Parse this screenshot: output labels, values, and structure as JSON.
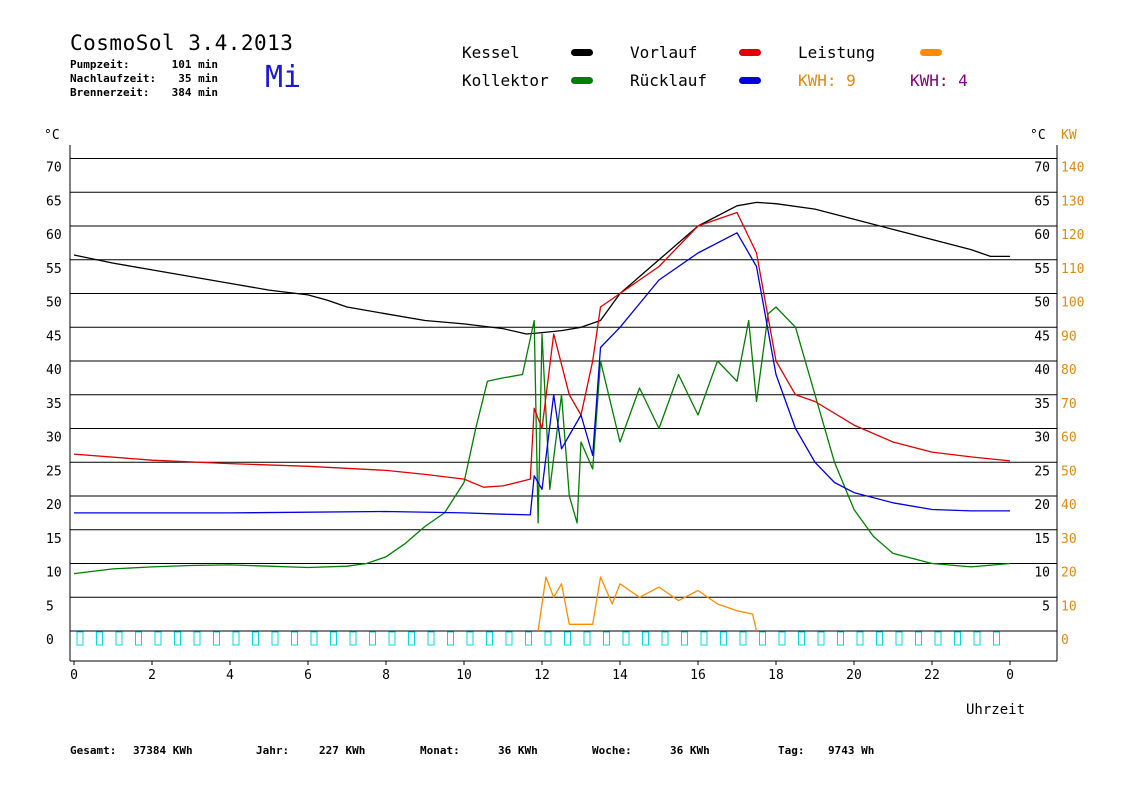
{
  "header": {
    "title": "CosmoSol 3.4.2013",
    "day": "Mi",
    "stats": [
      {
        "label": "Pumpzeit:",
        "value": "101 min"
      },
      {
        "label": "Nachlaufzeit:",
        "value": "35 min"
      },
      {
        "label": "Brennerzeit:",
        "value": "384 min"
      }
    ]
  },
  "legend": {
    "kessel": {
      "label": "Kessel",
      "color": "#000000"
    },
    "kollektor": {
      "label": "Kollektor",
      "color": "#008000"
    },
    "vorlauf": {
      "label": "Vorlauf",
      "color": "#e00000"
    },
    "ruecklauf": {
      "label": "Rücklauf",
      "color": "#0000e0"
    },
    "leistung": {
      "label": "Leistung",
      "color": "#ff8c00"
    },
    "kwh1": {
      "label": "KWH: 9",
      "color": "#e08a10"
    },
    "kwh2": {
      "label": "KWH: 4",
      "color": "#800080"
    }
  },
  "axes": {
    "left_unit": "°C",
    "right_unit_c": "°C",
    "right_unit_kw": "KW",
    "x_label": "Uhrzeit",
    "left_ticks": [
      "0",
      "5",
      "10",
      "15",
      "20",
      "25",
      "30",
      "35",
      "40",
      "45",
      "50",
      "55",
      "60",
      "65",
      "70"
    ],
    "right_ticks_c": [
      "5",
      "10",
      "15",
      "20",
      "25",
      "30",
      "35",
      "40",
      "45",
      "50",
      "55",
      "60",
      "65",
      "70"
    ],
    "right_ticks_kw": [
      "0",
      "10",
      "20",
      "30",
      "40",
      "50",
      "60",
      "70",
      "80",
      "90",
      "100",
      "110",
      "120",
      "130",
      "140"
    ],
    "x_ticks": [
      "0",
      "2",
      "4",
      "6",
      "8",
      "10",
      "12",
      "14",
      "16",
      "18",
      "20",
      "22",
      "0"
    ]
  },
  "footer": [
    {
      "label": "Gesamt:",
      "value": "37384 KWh"
    },
    {
      "label": "Jahr:",
      "value": "227 KWh"
    },
    {
      "label": "Monat:",
      "value": "36 KWh"
    },
    {
      "label": "Woche:",
      "value": "36 KWh"
    },
    {
      "label": "Tag:",
      "value": "9743 Wh"
    }
  ],
  "chart_data": {
    "type": "line",
    "title": "CosmoSol 3.4.2013",
    "xlabel": "Uhrzeit",
    "ylabel": "°C",
    "y2label": "KW",
    "xlim": [
      0,
      24
    ],
    "ylim": [
      0,
      70
    ],
    "y2lim": [
      0,
      140
    ],
    "grid": true,
    "series": [
      {
        "name": "Kessel",
        "color": "#000000",
        "axis": "left",
        "points": [
          [
            0,
            55.7
          ],
          [
            1,
            54.5
          ],
          [
            2,
            53.5
          ],
          [
            3,
            52.5
          ],
          [
            4,
            51.5
          ],
          [
            5,
            50.5
          ],
          [
            6,
            49.8
          ],
          [
            6.5,
            49.0
          ],
          [
            7,
            48.0
          ],
          [
            8,
            47.0
          ],
          [
            9,
            46.0
          ],
          [
            10,
            45.5
          ],
          [
            11,
            44.8
          ],
          [
            11.6,
            44.0
          ],
          [
            12,
            44.2
          ],
          [
            12.5,
            44.5
          ],
          [
            13,
            45
          ],
          [
            13.5,
            46
          ],
          [
            14,
            50
          ],
          [
            15,
            55
          ],
          [
            16,
            60
          ],
          [
            17,
            63
          ],
          [
            17.5,
            63.5
          ],
          [
            18,
            63.3
          ],
          [
            19,
            62.5
          ],
          [
            20,
            61
          ],
          [
            21,
            59.5
          ],
          [
            22,
            58
          ],
          [
            23,
            56.5
          ],
          [
            23.5,
            55.5
          ],
          [
            24,
            55.5
          ]
        ]
      },
      {
        "name": "Kollektor",
        "color": "#008000",
        "axis": "left",
        "points": [
          [
            0,
            8.5
          ],
          [
            1,
            9.2
          ],
          [
            2,
            9.5
          ],
          [
            3,
            9.7
          ],
          [
            4,
            9.8
          ],
          [
            5,
            9.6
          ],
          [
            6,
            9.4
          ],
          [
            7,
            9.6
          ],
          [
            7.5,
            10
          ],
          [
            8,
            11
          ],
          [
            8.5,
            13
          ],
          [
            9,
            15.5
          ],
          [
            9.5,
            17.5
          ],
          [
            10,
            22
          ],
          [
            10.3,
            30
          ],
          [
            10.6,
            37
          ],
          [
            11,
            37.5
          ],
          [
            11.5,
            38
          ],
          [
            11.8,
            46
          ],
          [
            11.9,
            16
          ],
          [
            12,
            44
          ],
          [
            12.2,
            21
          ],
          [
            12.5,
            35
          ],
          [
            12.7,
            20
          ],
          [
            12.9,
            16
          ],
          [
            13,
            28
          ],
          [
            13.3,
            24
          ],
          [
            13.5,
            40
          ],
          [
            14,
            28
          ],
          [
            14.5,
            36
          ],
          [
            15,
            30
          ],
          [
            15.5,
            38
          ],
          [
            16,
            32
          ],
          [
            16.5,
            40
          ],
          [
            17,
            37
          ],
          [
            17.3,
            46
          ],
          [
            17.5,
            34
          ],
          [
            17.8,
            47
          ],
          [
            18,
            48
          ],
          [
            18.5,
            45
          ],
          [
            19,
            35
          ],
          [
            19.5,
            25
          ],
          [
            20,
            18
          ],
          [
            20.5,
            14
          ],
          [
            21,
            11.5
          ],
          [
            22,
            10
          ],
          [
            23,
            9.5
          ],
          [
            24,
            10
          ]
        ]
      },
      {
        "name": "Vorlauf",
        "color": "#e00000",
        "axis": "left",
        "points": [
          [
            0,
            26.2
          ],
          [
            2,
            25.3
          ],
          [
            4,
            24.8
          ],
          [
            6,
            24.4
          ],
          [
            8,
            23.8
          ],
          [
            9,
            23.2
          ],
          [
            10,
            22.5
          ],
          [
            10.5,
            21.3
          ],
          [
            11,
            21.5
          ],
          [
            11.7,
            22.5
          ],
          [
            11.8,
            33
          ],
          [
            12,
            30
          ],
          [
            12.3,
            44
          ],
          [
            12.7,
            35
          ],
          [
            13,
            32
          ],
          [
            13.3,
            40
          ],
          [
            13.5,
            48
          ],
          [
            14,
            50
          ],
          [
            15,
            54
          ],
          [
            16,
            60
          ],
          [
            17,
            62
          ],
          [
            17.5,
            56
          ],
          [
            18,
            40
          ],
          [
            18.5,
            35
          ],
          [
            19,
            34
          ],
          [
            20,
            30.5
          ],
          [
            21,
            28
          ],
          [
            22,
            26.5
          ],
          [
            23,
            25.8
          ],
          [
            24,
            25.2
          ]
        ]
      },
      {
        "name": "Rücklauf",
        "color": "#0000e0",
        "axis": "left",
        "points": [
          [
            0,
            17.5
          ],
          [
            4,
            17.5
          ],
          [
            8,
            17.7
          ],
          [
            10,
            17.5
          ],
          [
            11,
            17.3
          ],
          [
            11.7,
            17.2
          ],
          [
            11.8,
            23
          ],
          [
            12,
            21
          ],
          [
            12.3,
            35
          ],
          [
            12.5,
            27
          ],
          [
            13,
            32
          ],
          [
            13.3,
            26
          ],
          [
            13.5,
            42
          ],
          [
            14,
            45
          ],
          [
            15,
            52
          ],
          [
            16,
            56
          ],
          [
            17,
            59
          ],
          [
            17.5,
            54
          ],
          [
            18,
            38
          ],
          [
            18.5,
            30
          ],
          [
            19,
            25
          ],
          [
            19.5,
            22
          ],
          [
            20,
            20.5
          ],
          [
            21,
            19
          ],
          [
            22,
            18
          ],
          [
            23,
            17.8
          ],
          [
            24,
            17.8
          ]
        ]
      },
      {
        "name": "Leistung",
        "color": "#ff8c00",
        "axis": "right",
        "points": [
          [
            11.9,
            0
          ],
          [
            12.1,
            16
          ],
          [
            12.3,
            10
          ],
          [
            12.5,
            14
          ],
          [
            12.7,
            2
          ],
          [
            13.3,
            2
          ],
          [
            13.5,
            16
          ],
          [
            13.8,
            8
          ],
          [
            14,
            14
          ],
          [
            14.5,
            10
          ],
          [
            15,
            13
          ],
          [
            15.5,
            9
          ],
          [
            16,
            12
          ],
          [
            16.5,
            8
          ],
          [
            17,
            6
          ],
          [
            17.4,
            5
          ],
          [
            17.5,
            0
          ]
        ]
      }
    ]
  }
}
